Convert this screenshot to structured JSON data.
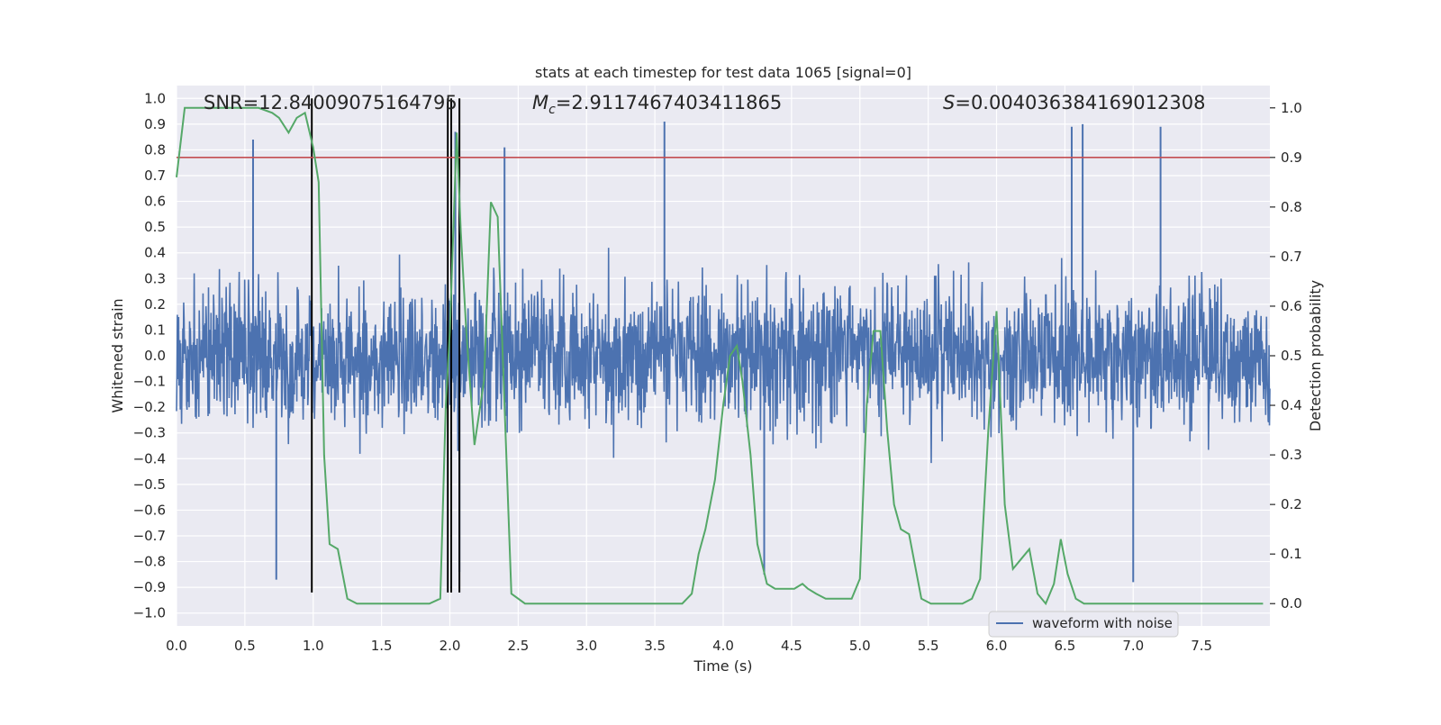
{
  "chart_data": {
    "type": "line",
    "title": "stats at each timestep for test data 1065 [signal=0]",
    "xlabel": "Time (s)",
    "ylabel": "Whitened strain",
    "y2label": "Detection probability",
    "xlim": [
      0,
      8
    ],
    "ylim": [
      -1.05,
      1.05
    ],
    "y2lim": [
      -0.045,
      1.045
    ],
    "x_ticks": [
      0.0,
      0.5,
      1.0,
      1.5,
      2.0,
      2.5,
      3.0,
      3.5,
      4.0,
      4.5,
      5.0,
      5.5,
      6.0,
      6.5,
      7.0,
      7.5
    ],
    "x_tick_labels": [
      "0.0",
      "0.5",
      "1.0",
      "1.5",
      "2.0",
      "2.5",
      "3.0",
      "3.5",
      "4.0",
      "4.5",
      "5.0",
      "5.5",
      "6.0",
      "6.5",
      "7.0",
      "7.5"
    ],
    "y_ticks": [
      -1.0,
      -0.9,
      -0.8,
      -0.7,
      -0.6,
      -0.5,
      -0.4,
      -0.3,
      -0.2,
      -0.1,
      0.0,
      0.1,
      0.2,
      0.3,
      0.4,
      0.5,
      0.6,
      0.7,
      0.8,
      0.9,
      1.0
    ],
    "y_tick_labels": [
      "−1.0",
      "−0.9",
      "−0.8",
      "−0.7",
      "−0.6",
      "−0.5",
      "−0.4",
      "−0.3",
      "−0.2",
      "−0.1",
      "0.0",
      "0.1",
      "0.2",
      "0.3",
      "0.4",
      "0.5",
      "0.6",
      "0.7",
      "0.8",
      "0.9",
      "1.0"
    ],
    "y2_ticks": [
      0.0,
      0.1,
      0.2,
      0.3,
      0.4,
      0.5,
      0.6,
      0.7,
      0.8,
      0.9,
      1.0
    ],
    "y2_tick_labels": [
      "0.0",
      "0.1",
      "0.2",
      "0.3",
      "0.4",
      "0.5",
      "0.6",
      "0.7",
      "0.8",
      "0.9",
      "1.0"
    ],
    "grid": true,
    "legend_placement": "lower-right",
    "annotations": {
      "snr": "SNR=12.84009075164795",
      "mc_symbol": "M",
      "mc_sub": "c",
      "mc_value": "=2.9117467403411865",
      "s_symbol": "S",
      "s_value": "=0.004036384169012308"
    },
    "waveform": {
      "name": "waveform with noise",
      "color": "#4c72b0",
      "note_envelope": "dense noise, core band roughly ±0.35 with spikes",
      "spikes": [
        {
          "x": 0.56,
          "y": 0.84
        },
        {
          "x": 0.73,
          "y": -0.87
        },
        {
          "x": 2.04,
          "y": 0.87
        },
        {
          "x": 2.07,
          "y": -0.84
        },
        {
          "x": 2.4,
          "y": 0.81
        },
        {
          "x": 3.57,
          "y": 0.91
        },
        {
          "x": 6.55,
          "y": 0.89
        },
        {
          "x": 6.63,
          "y": 0.9
        },
        {
          "x": 7.2,
          "y": 0.89
        },
        {
          "x": 7.0,
          "y": -0.88
        },
        {
          "x": 4.3,
          "y": -0.85
        }
      ]
    },
    "detection_probability": {
      "color": "#55a868",
      "x": [
        0.0,
        0.06,
        0.12,
        0.2,
        0.3,
        0.4,
        0.5,
        0.6,
        0.7,
        0.75,
        0.82,
        0.88,
        0.94,
        1.0,
        1.04,
        1.08,
        1.12,
        1.18,
        1.25,
        1.32,
        1.45,
        1.6,
        1.75,
        1.85,
        1.93,
        1.97,
        2.0,
        2.05,
        2.08,
        2.12,
        2.18,
        2.25,
        2.3,
        2.35,
        2.45,
        2.55,
        2.7,
        2.9,
        3.1,
        3.3,
        3.5,
        3.7,
        3.77,
        3.82,
        3.87,
        3.94,
        4.0,
        4.05,
        4.1,
        4.14,
        4.2,
        4.25,
        4.32,
        4.38,
        4.45,
        4.52,
        4.58,
        4.62,
        4.68,
        4.75,
        4.82,
        4.88,
        4.94,
        5.0,
        5.05,
        5.1,
        5.15,
        5.2,
        5.25,
        5.3,
        5.36,
        5.45,
        5.52,
        5.6,
        5.68,
        5.75,
        5.82,
        5.88,
        5.94,
        6.0,
        6.06,
        6.12,
        6.18,
        6.24,
        6.3,
        6.36,
        6.42,
        6.47,
        6.52,
        6.58,
        6.64,
        6.72,
        6.8,
        6.9,
        7.0,
        7.1,
        7.2,
        7.3,
        7.4,
        7.5,
        7.6,
        7.7,
        7.8,
        7.95
      ],
      "y": [
        0.86,
        1.0,
        1.0,
        1.0,
        1.0,
        1.0,
        1.0,
        1.0,
        0.99,
        0.98,
        0.95,
        0.98,
        0.99,
        0.92,
        0.85,
        0.3,
        0.12,
        0.11,
        0.01,
        0.0,
        0.0,
        0.0,
        0.0,
        0.0,
        0.01,
        0.4,
        0.55,
        0.95,
        0.75,
        0.55,
        0.32,
        0.45,
        0.81,
        0.78,
        0.02,
        0.0,
        0.0,
        0.0,
        0.0,
        0.0,
        0.0,
        0.0,
        0.02,
        0.1,
        0.15,
        0.25,
        0.4,
        0.5,
        0.52,
        0.45,
        0.3,
        0.12,
        0.04,
        0.03,
        0.03,
        0.03,
        0.04,
        0.03,
        0.02,
        0.01,
        0.01,
        0.01,
        0.01,
        0.05,
        0.4,
        0.55,
        0.55,
        0.35,
        0.2,
        0.15,
        0.14,
        0.01,
        0.0,
        0.0,
        0.0,
        0.0,
        0.01,
        0.05,
        0.35,
        0.59,
        0.2,
        0.07,
        0.09,
        0.11,
        0.02,
        0.0,
        0.04,
        0.13,
        0.06,
        0.01,
        0.0,
        0.0,
        0.0,
        0.0,
        0.0,
        0.0,
        0.0,
        0.0,
        0.0,
        0.0,
        0.0,
        0.0,
        0.0,
        0.0
      ]
    },
    "threshold": {
      "value": 0.9,
      "axis": "y2",
      "color": "#c44e52"
    },
    "event_markers": {
      "color": "#000000",
      "x": [
        0.99,
        1.985,
        2.01,
        2.07
      ],
      "y_from": -0.92,
      "y_to": 1.0
    }
  }
}
